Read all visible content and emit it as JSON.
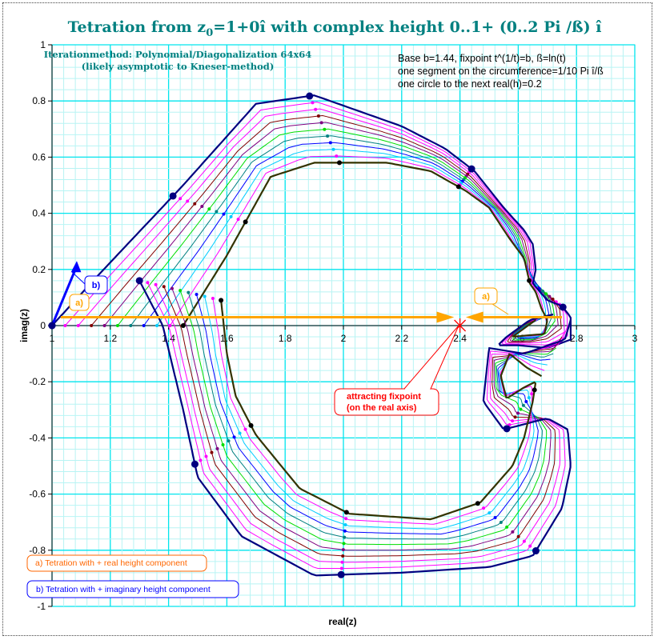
{
  "chart_data": {
    "type": "line",
    "title": "Tetration from z",
    "title_sub": "0",
    "title_rest": "=1+0î with complex height 0..1+ (0..2 Pi /ß) î",
    "subtitle_lines": [
      "Iterationmethod: Polynomial/Diagonalization 64x64",
      "(likely asymptotic to Kneser-method)"
    ],
    "info_lines": [
      "Base b=1.44, fixpoint t^(1/t)=b, ß=ln(t)",
      "one segment on the circumference=1/10 Pi î/ß",
      "one circle to the next  real(h)=0.2"
    ],
    "xlabel": "real(z)",
    "ylabel": "imag(z)",
    "xlim": [
      1,
      3
    ],
    "ylim": [
      -1,
      1
    ],
    "xticks": [
      "1",
      "1.2",
      "1.4",
      "1.6",
      "1.8",
      "2",
      "2.2",
      "2.4",
      "2.6",
      "2.8",
      "3"
    ],
    "yticks": [
      "1",
      "0.8",
      "0.6",
      "0.4",
      "0.2",
      "0",
      "-0.2",
      "-0.4",
      "-0.6",
      "-0.8",
      "-1"
    ],
    "grid": true,
    "fixpoint": {
      "x": 2.4,
      "y": 0,
      "label_lines": [
        "attracting fixpoint",
        "(on the real axis)"
      ]
    },
    "callouts": {
      "a_label": "a)",
      "b_label": "b)"
    },
    "legend_notes": [
      "a) Tetration with + real height component",
      "b) Tetration with + imaginary height component"
    ],
    "colors": {
      "outer": "#000080",
      "inner": "#333300",
      "real_arrow": "#FFA500",
      "imag_arrow": "#0000FF",
      "fixpoint": "#FF0000",
      "grid_major": "#00E5EE",
      "grid_minor": "#B8F4F4",
      "title": "#008080"
    },
    "series_colors": [
      "#FF00FF",
      "#FF00FF",
      "#800000",
      "#800080",
      "#00DD00",
      "#008080",
      "#0000FF",
      "#00CCFF",
      "#FF00FF"
    ],
    "series": [
      {
        "role": "upper-outer",
        "points": [
          [
            1,
            0
          ],
          [
            1.15,
            0.17
          ],
          [
            1.45,
            0.5
          ],
          [
            1.7,
            0.79
          ],
          [
            1.9,
            0.82
          ],
          [
            2.2,
            0.71
          ],
          [
            2.35,
            0.63
          ],
          [
            2.45,
            0.55
          ],
          [
            2.55,
            0.42
          ],
          [
            2.62,
            0.34
          ],
          [
            2.65,
            0.29
          ],
          [
            2.66,
            0.2
          ],
          [
            2.65,
            0.15
          ],
          [
            2.7,
            0.09
          ],
          [
            2.75,
            0.07
          ],
          [
            2.78,
            0.03
          ],
          [
            2.78,
            -0.05
          ],
          [
            2.7,
            -0.08
          ],
          [
            2.6,
            -0.07
          ],
          [
            2.53,
            -0.07
          ],
          [
            2.56,
            -0.04
          ],
          [
            2.64,
            0.02
          ],
          [
            2.72,
            0.04
          ]
        ]
      },
      {
        "role": "upper-inner",
        "points": [
          [
            1.45,
            0
          ],
          [
            1.6,
            0.25
          ],
          [
            1.75,
            0.53
          ],
          [
            1.9,
            0.58
          ],
          [
            2.15,
            0.58
          ],
          [
            2.3,
            0.55
          ],
          [
            2.42,
            0.48
          ],
          [
            2.5,
            0.42
          ],
          [
            2.57,
            0.31
          ],
          [
            2.62,
            0.24
          ],
          [
            2.64,
            0.15
          ],
          [
            2.66,
            0.12
          ],
          [
            2.68,
            0.06
          ],
          [
            2.7,
            0.02
          ],
          [
            2.69,
            -0.03
          ],
          [
            2.63,
            -0.035
          ],
          [
            2.58,
            -0.04
          ],
          [
            2.62,
            -0.01
          ],
          [
            2.66,
            0.02
          ]
        ]
      },
      {
        "role": "lower-outer",
        "points": [
          [
            1.3,
            0.16
          ],
          [
            1.38,
            0
          ],
          [
            1.45,
            -0.3
          ],
          [
            1.5,
            -0.54
          ],
          [
            1.65,
            -0.75
          ],
          [
            1.9,
            -0.89
          ],
          [
            2.2,
            -0.88
          ],
          [
            2.5,
            -0.86
          ],
          [
            2.65,
            -0.82
          ],
          [
            2.75,
            -0.65
          ],
          [
            2.78,
            -0.5
          ],
          [
            2.77,
            -0.37
          ],
          [
            2.7,
            -0.33
          ],
          [
            2.55,
            -0.37
          ],
          [
            2.48,
            -0.27
          ],
          [
            2.5,
            -0.08
          ],
          [
            2.62,
            -0.1
          ],
          [
            2.76,
            -0.05
          ],
          [
            2.78,
            0.02
          ]
        ]
      },
      {
        "role": "lower-inner",
        "points": [
          [
            1.58,
            0.09
          ],
          [
            1.6,
            -0.1
          ],
          [
            1.63,
            -0.25
          ],
          [
            1.7,
            -0.39
          ],
          [
            1.85,
            -0.58
          ],
          [
            2.02,
            -0.67
          ],
          [
            2.3,
            -0.69
          ],
          [
            2.47,
            -0.63
          ],
          [
            2.58,
            -0.5
          ],
          [
            2.62,
            -0.4
          ],
          [
            2.65,
            -0.27
          ],
          [
            2.66,
            -0.2
          ],
          [
            2.62,
            -0.22
          ],
          [
            2.56,
            -0.26
          ],
          [
            2.54,
            -0.18
          ],
          [
            2.57,
            -0.1
          ],
          [
            2.63,
            -0.15
          ],
          [
            2.68,
            -0.18
          ]
        ]
      }
    ]
  }
}
